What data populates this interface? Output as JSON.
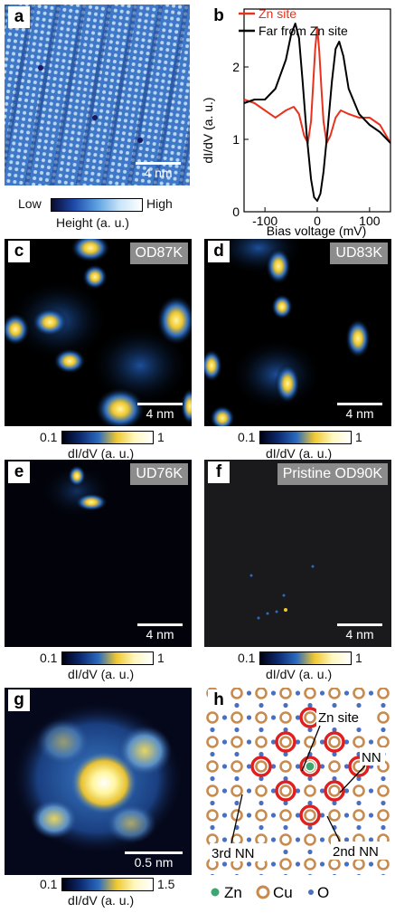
{
  "panels": {
    "a": {
      "label": "a",
      "scale": "4 nm",
      "cbar_low": "Low",
      "cbar_high": "High",
      "cbar_title": "Height (a. u.)"
    },
    "b": {
      "label": "b"
    },
    "c": {
      "label": "c",
      "tag": "OD87K",
      "scale": "4 nm",
      "cmin": "0.1",
      "cmax": "1",
      "ctitle": "dI/dV (a. u.)"
    },
    "d": {
      "label": "d",
      "tag": "UD83K",
      "scale": "4 nm",
      "cmin": "0.1",
      "cmax": "1",
      "ctitle": "dI/dV (a. u.)"
    },
    "e": {
      "label": "e",
      "tag": "UD76K",
      "scale": "4 nm",
      "cmin": "0.1",
      "cmax": "1",
      "ctitle": "dI/dV (a. u.)"
    },
    "f": {
      "label": "f",
      "tag": "Pristine OD90K",
      "scale": "4 nm",
      "cmin": "0.1",
      "cmax": "1",
      "ctitle": "dI/dV (a. u.)"
    },
    "g": {
      "label": "g",
      "scale": "0.5 nm",
      "cmin": "0.1",
      "cmax": "1.5",
      "ctitle": "dI/dV (a. u.)"
    },
    "h": {
      "label": "h",
      "zn_site": "Zn site",
      "nn": "NN",
      "nn2": "2nd NN",
      "nn3": "3rd NN",
      "legend": {
        "zn": "Zn",
        "cu": "Cu",
        "o": "O"
      }
    }
  },
  "colors": {
    "zn_series": "#e8321e",
    "far_series": "#000000",
    "cu": "#c98a4e",
    "o": "#4a6fc0",
    "zn": "#3aa870",
    "ring": "#e02020"
  },
  "chart_data": {
    "type": "line",
    "title": "",
    "xlabel": "Bias voltage (mV)",
    "ylabel": "dI/dV (a. u.)",
    "xlim": [
      -140,
      140
    ],
    "ylim": [
      0,
      2.8
    ],
    "xticks": [
      -100,
      0,
      100
    ],
    "yticks": [
      0,
      1,
      2
    ],
    "legend_position": "top-right",
    "series": [
      {
        "name": "Zn site",
        "x": [
          -140,
          -120,
          -100,
          -80,
          -60,
          -45,
          -35,
          -25,
          -18,
          -12,
          -8,
          -4,
          0,
          4,
          8,
          12,
          18,
          25,
          35,
          45,
          60,
          80,
          100,
          120,
          140
        ],
        "y": [
          1.55,
          1.5,
          1.4,
          1.3,
          1.4,
          1.45,
          1.35,
          1.05,
          0.95,
          1.25,
          1.75,
          2.25,
          2.55,
          2.2,
          1.7,
          1.25,
          0.95,
          1.05,
          1.3,
          1.4,
          1.35,
          1.3,
          1.3,
          1.2,
          0.95
        ]
      },
      {
        "name": "Far from Zn site",
        "x": [
          -140,
          -120,
          -100,
          -80,
          -60,
          -50,
          -42,
          -35,
          -28,
          -20,
          -12,
          -6,
          0,
          6,
          12,
          20,
          28,
          35,
          42,
          50,
          60,
          80,
          100,
          120,
          140
        ],
        "y": [
          1.5,
          1.55,
          1.55,
          1.7,
          2.1,
          2.45,
          2.6,
          2.4,
          1.8,
          1.05,
          0.45,
          0.2,
          0.15,
          0.25,
          0.55,
          1.15,
          1.8,
          2.25,
          2.35,
          2.15,
          1.7,
          1.35,
          1.2,
          1.1,
          0.95
        ]
      }
    ]
  }
}
